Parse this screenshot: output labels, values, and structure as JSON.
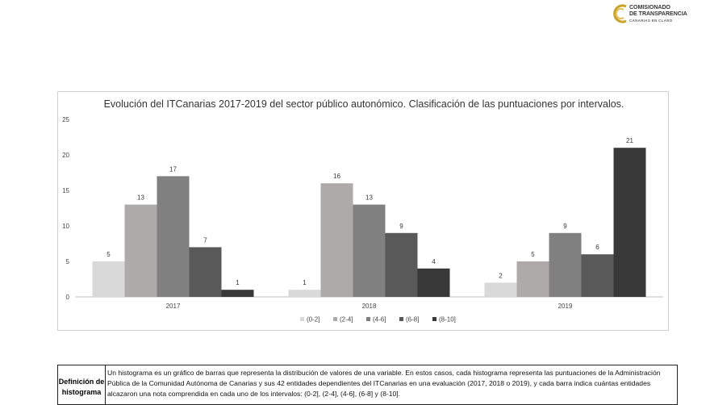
{
  "logo": {
    "line1": "COMISIONADO",
    "line2": "DE TRANSPARENCIA",
    "line3": "CANARIAS EN CLARO",
    "color": "#c9a227"
  },
  "chart_data": {
    "type": "bar",
    "title": "Evolución del ITCanarias 2017-2019 del sector público autonómico. Clasificación de las puntuaciones por intervalos.",
    "categories": [
      "2017",
      "2018",
      "2019"
    ],
    "series": [
      {
        "name": "(0-2]",
        "values": [
          5,
          1,
          2
        ],
        "color": "#d9d9d9"
      },
      {
        "name": "(2-4]",
        "values": [
          13,
          16,
          5
        ],
        "color": "#aeaaaa"
      },
      {
        "name": "(4-6]",
        "values": [
          17,
          13,
          9
        ],
        "color": "#808080"
      },
      {
        "name": "(6-8]",
        "values": [
          7,
          9,
          6
        ],
        "color": "#595959"
      },
      {
        "name": "(8-10]",
        "values": [
          1,
          4,
          21
        ],
        "color": "#383838"
      }
    ],
    "ylim": [
      0,
      25
    ],
    "yticks": [
      0,
      5,
      10,
      15,
      20,
      25
    ],
    "grid": false,
    "legend": "bottom",
    "data_labels": true
  },
  "definition": {
    "label": "Definición de histograma",
    "text": "Un histograma es un gráfico de barras que representa la distribución de valores de una variable. En estos casos, cada histograma representa las puntuaciones de la Administración Pública de la Comunidad Autónoma de Canarias y sus 42 entidades dependientes del ITCanarias en una evaluación (2017, 2018 o 2019), y cada barra indica cuántas entidades alcazaron una nota comprendida en cada uno de los intervalos: (0-2], (2-4], (4-6], (6-8] y (8-10]."
  }
}
